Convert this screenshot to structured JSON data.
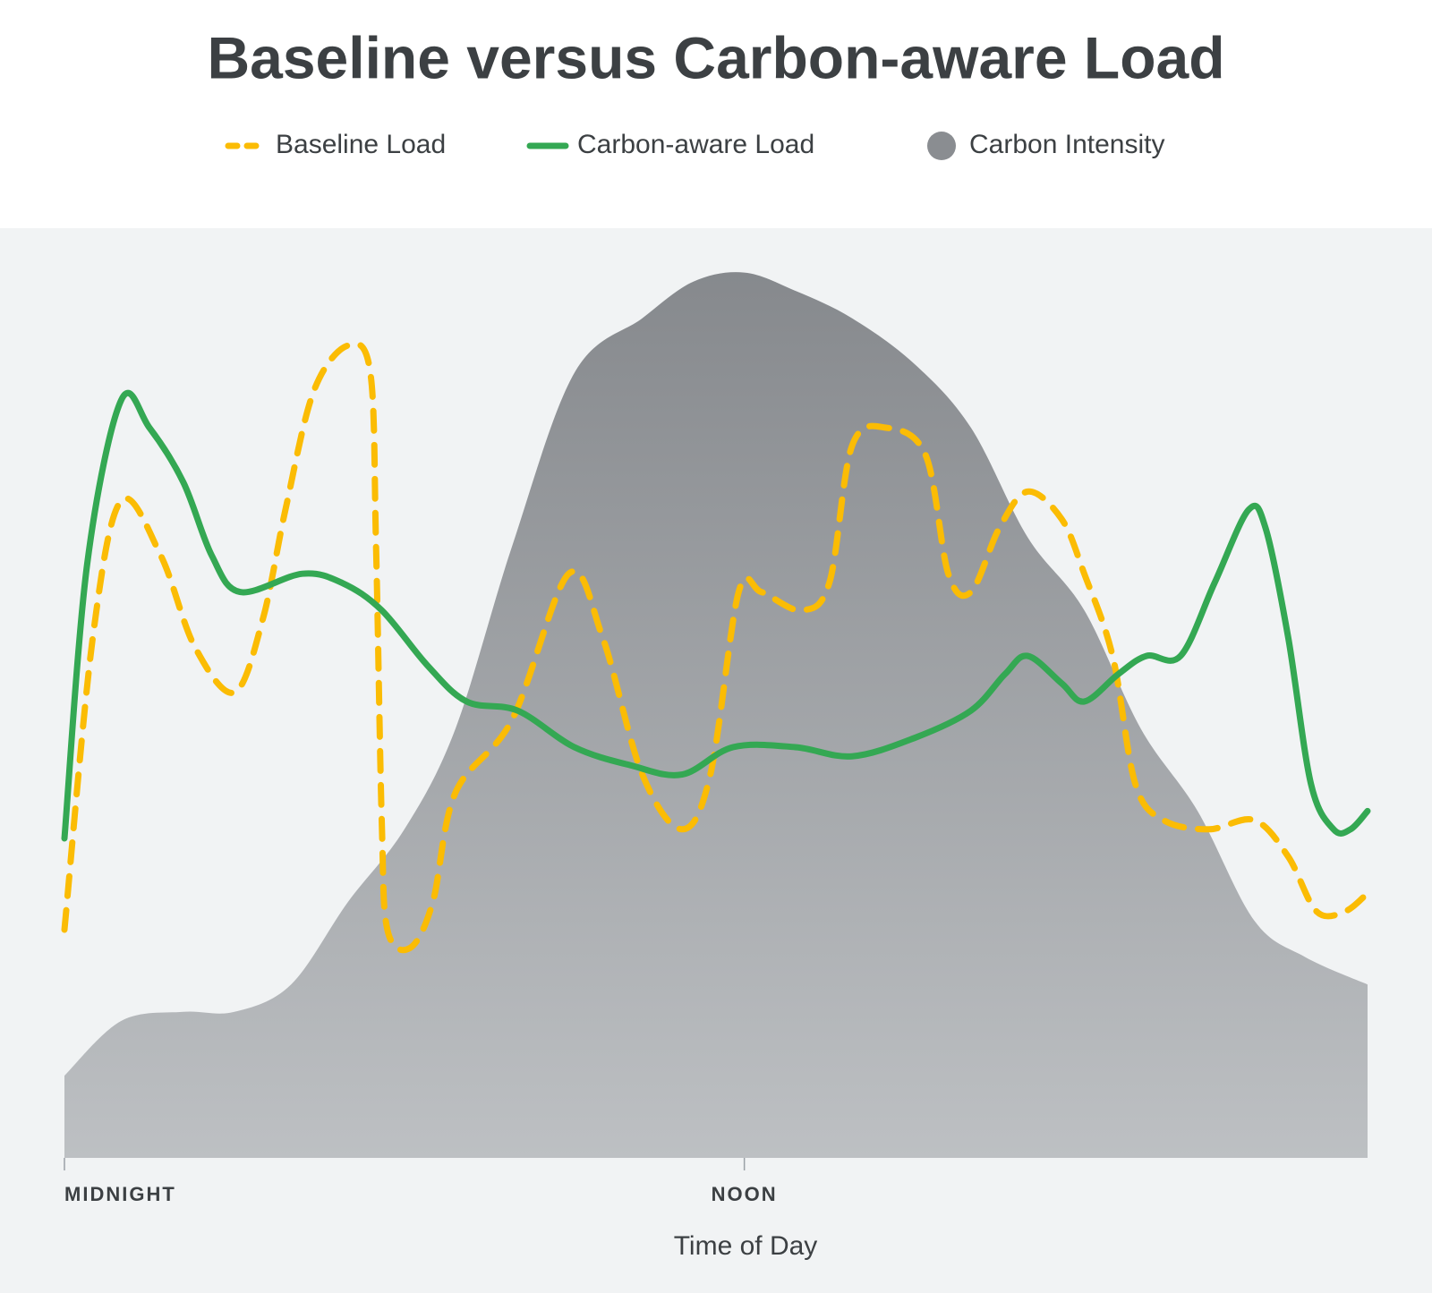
{
  "chart_data": {
    "type": "line",
    "title": "Baseline versus Carbon-aware Load",
    "x_label": "Time of Day",
    "xlim": [
      0,
      23
    ],
    "ylim": [
      0,
      100
    ],
    "xticks": [
      {
        "value": 0,
        "label": "MIDNIGHT"
      },
      {
        "value": 12,
        "label": "NOON"
      }
    ],
    "series": [
      {
        "name": "Baseline Load",
        "color": "#fbbc04",
        "style": "dashed",
        "x": [
          0,
          0.5,
          1,
          1.7,
          2.3,
          3,
          3.5,
          3.9,
          4.4,
          5,
          5.4,
          5.5,
          5.6,
          5.7,
          6.1,
          6.5,
          6.9,
          7.9,
          8.9,
          9.5,
          10.2,
          10.9,
          11.4,
          11.9,
          12.3,
          13,
          13.5,
          13.9,
          14.5,
          15.2,
          15.6,
          16,
          16.5,
          17,
          17.6,
          18,
          18.5,
          18.9,
          19.4,
          20.2,
          21,
          21.6,
          22.1,
          22.6,
          23
        ],
        "values": [
          25,
          57,
          72,
          66,
          56,
          51,
          59,
          71,
          84,
          89,
          86,
          67,
          37,
          25,
          23,
          28,
          40,
          48,
          64,
          57,
          42,
          36,
          42,
          62,
          62,
          60,
          63,
          78,
          80,
          77,
          64,
          62,
          69,
          73,
          70,
          64,
          55,
          41,
          37,
          36,
          37,
          33,
          27,
          27,
          29
        ]
      },
      {
        "name": "Carbon-aware Load",
        "color": "#34a853",
        "style": "solid",
        "x": [
          0,
          0.4,
          1,
          1.5,
          2.1,
          2.6,
          3.1,
          4.2,
          4.9,
          5.6,
          6.4,
          7.1,
          8,
          9,
          10,
          10.9,
          11.8,
          12.9,
          13.9,
          15,
          16,
          16.6,
          17,
          17.6,
          18,
          18.6,
          19.1,
          19.7,
          20.3,
          20.9,
          21.2,
          21.6,
          22,
          22.4,
          22.7,
          23
        ],
        "values": [
          35,
          65,
          83,
          80,
          74,
          66,
          62,
          64,
          63,
          60,
          54,
          50,
          49,
          45,
          43,
          42,
          45,
          45,
          44,
          46,
          49,
          53,
          55,
          52,
          50,
          53,
          55,
          55,
          63,
          71,
          69,
          57,
          41,
          36,
          36,
          38
        ]
      },
      {
        "name": "Carbon Intensity",
        "color": "#8a8d91",
        "type": "area",
        "x": [
          0,
          1,
          2.1,
          3,
          4,
          5,
          6,
          6.9,
          7.9,
          9,
          10.2,
          11.1,
          12,
          12.9,
          13.9,
          15,
          16,
          17,
          18,
          19,
          20,
          21,
          21.9,
          23
        ],
        "values": [
          9,
          15,
          16,
          16,
          19,
          28,
          36,
          47,
          67,
          86,
          92,
          96,
          97,
          95,
          92,
          87,
          80,
          68,
          60,
          47,
          38,
          26,
          22,
          19
        ]
      }
    ]
  }
}
